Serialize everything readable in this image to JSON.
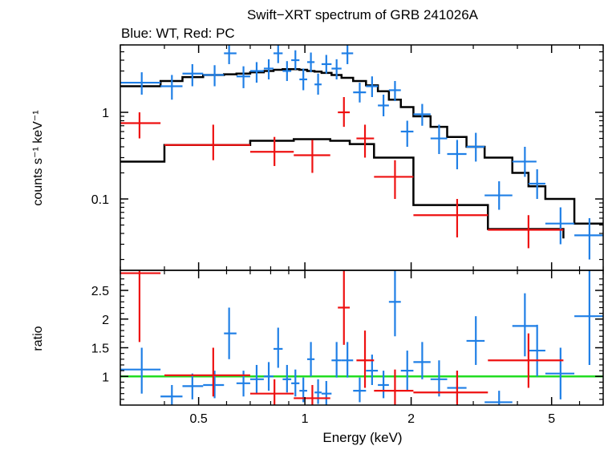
{
  "chart_data": [
    {
      "type": "scatter",
      "panel": "spectrum",
      "title": "Swift−XRT spectrum of GRB 241026A",
      "subtitle": "Blue: WT, Red: PC",
      "xlabel": "",
      "ylabel": "counts s⁻¹ keV⁻¹",
      "xscale": "log",
      "yscale": "log",
      "xlim": [
        0.3,
        7.0
      ],
      "ylim": [
        0.015,
        6.0
      ],
      "x_ticks": [
        0.5,
        1,
        2,
        5
      ],
      "y_ticks": [
        0.1,
        1
      ],
      "y_tick_labels": [
        "0.1",
        "1"
      ],
      "colors": {
        "wt": "#1f7fe6",
        "pc": "#ee1111",
        "model": "#000000"
      },
      "series": [
        {
          "name": "WT",
          "color": "#1f7fe6",
          "points": [
            {
              "x": 0.345,
              "xlo": 0.3,
              "xhi": 0.39,
              "y": 2.2,
              "ylo": 1.6,
              "yhi": 2.9
            },
            {
              "x": 0.42,
              "xlo": 0.39,
              "xhi": 0.45,
              "y": 2.0,
              "ylo": 1.4,
              "yhi": 2.7
            },
            {
              "x": 0.48,
              "xlo": 0.45,
              "xhi": 0.515,
              "y": 2.8,
              "ylo": 2.0,
              "yhi": 3.6
            },
            {
              "x": 0.555,
              "xlo": 0.515,
              "xhi": 0.59,
              "y": 2.7,
              "ylo": 2.0,
              "yhi": 3.5
            },
            {
              "x": 0.61,
              "xlo": 0.59,
              "xhi": 0.64,
              "y": 4.8,
              "ylo": 3.6,
              "yhi": 6.0
            },
            {
              "x": 0.67,
              "xlo": 0.64,
              "xhi": 0.7,
              "y": 2.6,
              "ylo": 1.9,
              "yhi": 3.4
            },
            {
              "x": 0.73,
              "xlo": 0.7,
              "xhi": 0.765,
              "y": 3.0,
              "ylo": 2.2,
              "yhi": 3.8
            },
            {
              "x": 0.79,
              "xlo": 0.765,
              "xhi": 0.815,
              "y": 3.2,
              "ylo": 2.4,
              "yhi": 4.1
            },
            {
              "x": 0.84,
              "xlo": 0.815,
              "xhi": 0.865,
              "y": 4.8,
              "ylo": 3.7,
              "yhi": 6.0
            },
            {
              "x": 0.89,
              "xlo": 0.865,
              "xhi": 0.915,
              "y": 3.0,
              "ylo": 2.3,
              "yhi": 3.9
            },
            {
              "x": 0.94,
              "xlo": 0.915,
              "xhi": 0.965,
              "y": 4.0,
              "ylo": 3.1,
              "yhi": 5.2
            },
            {
              "x": 0.99,
              "xlo": 0.965,
              "xhi": 1.015,
              "y": 2.4,
              "ylo": 1.8,
              "yhi": 3.2
            },
            {
              "x": 1.04,
              "xlo": 1.015,
              "xhi": 1.065,
              "y": 3.8,
              "ylo": 2.9,
              "yhi": 4.9
            },
            {
              "x": 1.09,
              "xlo": 1.065,
              "xhi": 1.115,
              "y": 2.1,
              "ylo": 1.6,
              "yhi": 2.8
            },
            {
              "x": 1.15,
              "xlo": 1.115,
              "xhi": 1.19,
              "y": 3.6,
              "ylo": 2.8,
              "yhi": 4.6
            },
            {
              "x": 1.23,
              "xlo": 1.19,
              "xhi": 1.27,
              "y": 3.2,
              "ylo": 2.4,
              "yhi": 4.1
            },
            {
              "x": 1.32,
              "xlo": 1.27,
              "xhi": 1.37,
              "y": 4.8,
              "ylo": 3.6,
              "yhi": 6.0
            },
            {
              "x": 1.43,
              "xlo": 1.37,
              "xhi": 1.49,
              "y": 1.7,
              "ylo": 1.3,
              "yhi": 2.2
            },
            {
              "x": 1.55,
              "xlo": 1.49,
              "xhi": 1.61,
              "y": 2.0,
              "ylo": 1.5,
              "yhi": 2.6
            },
            {
              "x": 1.67,
              "xlo": 1.61,
              "xhi": 1.73,
              "y": 1.2,
              "ylo": 0.9,
              "yhi": 1.6
            },
            {
              "x": 1.8,
              "xlo": 1.73,
              "xhi": 1.87,
              "y": 1.8,
              "ylo": 1.35,
              "yhi": 2.3
            },
            {
              "x": 1.95,
              "xlo": 1.87,
              "xhi": 2.03,
              "y": 0.6,
              "ylo": 0.4,
              "yhi": 0.8
            },
            {
              "x": 2.15,
              "xlo": 2.03,
              "xhi": 2.27,
              "y": 0.95,
              "ylo": 0.7,
              "yhi": 1.25
            },
            {
              "x": 2.4,
              "xlo": 2.27,
              "xhi": 2.53,
              "y": 0.5,
              "ylo": 0.33,
              "yhi": 0.72
            },
            {
              "x": 2.7,
              "xlo": 2.53,
              "xhi": 2.87,
              "y": 0.33,
              "ylo": 0.22,
              "yhi": 0.48
            },
            {
              "x": 3.05,
              "xlo": 2.87,
              "xhi": 3.23,
              "y": 0.4,
              "ylo": 0.27,
              "yhi": 0.58
            },
            {
              "x": 3.55,
              "xlo": 3.23,
              "xhi": 3.87,
              "y": 0.11,
              "ylo": 0.075,
              "yhi": 0.16
            },
            {
              "x": 4.2,
              "xlo": 3.87,
              "xhi": 4.53,
              "y": 0.27,
              "ylo": 0.18,
              "yhi": 0.4
            },
            {
              "x": 4.55,
              "xlo": 4.3,
              "xhi": 4.8,
              "y": 0.15,
              "ylo": 0.1,
              "yhi": 0.22
            },
            {
              "x": 5.3,
              "xlo": 4.8,
              "xhi": 5.8,
              "y": 0.052,
              "ylo": 0.03,
              "yhi": 0.08
            },
            {
              "x": 6.4,
              "xlo": 5.8,
              "xhi": 7.0,
              "y": 0.038,
              "ylo": 0.02,
              "yhi": 0.06
            }
          ]
        },
        {
          "name": "PC",
          "color": "#ee1111",
          "points": [
            {
              "x": 0.34,
              "xlo": 0.3,
              "xhi": 0.39,
              "y": 0.75,
              "ylo": 0.5,
              "yhi": 1.0
            },
            {
              "x": 0.55,
              "xlo": 0.4,
              "xhi": 0.7,
              "y": 0.42,
              "ylo": 0.28,
              "yhi": 0.72
            },
            {
              "x": 0.82,
              "xlo": 0.7,
              "xhi": 0.93,
              "y": 0.35,
              "ylo": 0.24,
              "yhi": 0.52
            },
            {
              "x": 1.05,
              "xlo": 0.93,
              "xhi": 1.18,
              "y": 0.32,
              "ylo": 0.2,
              "yhi": 0.48
            },
            {
              "x": 1.29,
              "xlo": 1.24,
              "xhi": 1.34,
              "y": 1.0,
              "ylo": 0.68,
              "yhi": 1.5
            },
            {
              "x": 1.48,
              "xlo": 1.4,
              "xhi": 1.57,
              "y": 0.5,
              "ylo": 0.3,
              "yhi": 0.72
            },
            {
              "x": 1.8,
              "xlo": 1.57,
              "xhi": 2.03,
              "y": 0.18,
              "ylo": 0.1,
              "yhi": 0.28
            },
            {
              "x": 2.7,
              "xlo": 2.03,
              "xhi": 3.3,
              "y": 0.065,
              "ylo": 0.036,
              "yhi": 0.1
            },
            {
              "x": 4.3,
              "xlo": 3.3,
              "xhi": 5.4,
              "y": 0.044,
              "ylo": 0.027,
              "yhi": 0.065
            }
          ]
        }
      ],
      "model_lines": [
        {
          "color": "#000000",
          "steps": [
            [
              0.3,
              2.0
            ],
            [
              0.39,
              2.3
            ],
            [
              0.45,
              2.55
            ],
            [
              0.515,
              2.7
            ],
            [
              0.59,
              2.75
            ],
            [
              0.64,
              2.8
            ],
            [
              0.7,
              2.9
            ],
            [
              0.765,
              3.0
            ],
            [
              0.815,
              3.1
            ],
            [
              0.865,
              3.15
            ],
            [
              0.915,
              3.15
            ],
            [
              0.965,
              3.1
            ],
            [
              1.015,
              3.0
            ],
            [
              1.065,
              2.95
            ],
            [
              1.115,
              2.85
            ],
            [
              1.19,
              2.7
            ],
            [
              1.27,
              2.5
            ],
            [
              1.37,
              2.3
            ],
            [
              1.49,
              2.05
            ],
            [
              1.61,
              1.75
            ],
            [
              1.73,
              1.4
            ],
            [
              1.87,
              1.15
            ],
            [
              2.03,
              0.9
            ],
            [
              2.27,
              0.68
            ],
            [
              2.53,
              0.52
            ],
            [
              2.87,
              0.4
            ],
            [
              3.23,
              0.3
            ],
            [
              3.87,
              0.2
            ],
            [
              4.3,
              0.14
            ],
            [
              4.8,
              0.1
            ],
            [
              5.8,
              0.052
            ],
            [
              7.0,
              0.052
            ]
          ]
        },
        {
          "color": "#000000",
          "steps": [
            [
              0.3,
              0.27
            ],
            [
              0.4,
              0.42
            ],
            [
              0.7,
              0.47
            ],
            [
              0.93,
              0.49
            ],
            [
              1.18,
              0.47
            ],
            [
              1.34,
              0.43
            ],
            [
              1.57,
              0.3
            ],
            [
              2.03,
              0.085
            ],
            [
              3.3,
              0.045
            ],
            [
              5.4,
              0.035
            ]
          ]
        }
      ]
    },
    {
      "type": "scatter",
      "panel": "ratio",
      "xlabel": "Energy (keV)",
      "ylabel": "ratio",
      "xscale": "log",
      "yscale": "linear",
      "xlim": [
        0.3,
        7.0
      ],
      "ylim": [
        0.5,
        2.85
      ],
      "x_ticks": [
        0.5,
        1,
        2,
        5
      ],
      "x_tick_labels": [
        "0.5",
        "1",
        "2",
        "5"
      ],
      "y_ticks": [
        1,
        1.5,
        2,
        2.5
      ],
      "y_tick_labels": [
        "1",
        "1.5",
        "2",
        "2.5"
      ],
      "reference_line": {
        "y": 1,
        "color": "#22dd22"
      },
      "series": [
        {
          "name": "WT",
          "color": "#1f7fe6",
          "points": [
            {
              "x": 0.345,
              "xlo": 0.3,
              "xhi": 0.39,
              "y": 1.12,
              "ylo": 0.7,
              "yhi": 1.5
            },
            {
              "x": 0.42,
              "xlo": 0.39,
              "xhi": 0.45,
              "y": 0.65,
              "ylo": 0.5,
              "yhi": 0.85
            },
            {
              "x": 0.48,
              "xlo": 0.45,
              "xhi": 0.515,
              "y": 0.83,
              "ylo": 0.6,
              "yhi": 1.05
            },
            {
              "x": 0.555,
              "xlo": 0.515,
              "xhi": 0.59,
              "y": 0.85,
              "ylo": 0.62,
              "yhi": 1.1
            },
            {
              "x": 0.61,
              "xlo": 0.59,
              "xhi": 0.64,
              "y": 1.75,
              "ylo": 1.3,
              "yhi": 2.2
            },
            {
              "x": 0.67,
              "xlo": 0.64,
              "xhi": 0.7,
              "y": 0.88,
              "ylo": 0.65,
              "yhi": 1.1
            },
            {
              "x": 0.73,
              "xlo": 0.7,
              "xhi": 0.765,
              "y": 0.95,
              "ylo": 0.7,
              "yhi": 1.2
            },
            {
              "x": 0.79,
              "xlo": 0.765,
              "xhi": 0.815,
              "y": 1.0,
              "ylo": 0.75,
              "yhi": 1.25
            },
            {
              "x": 0.84,
              "xlo": 0.815,
              "xhi": 0.865,
              "y": 1.48,
              "ylo": 1.15,
              "yhi": 1.85
            },
            {
              "x": 0.89,
              "xlo": 0.865,
              "xhi": 0.915,
              "y": 0.95,
              "ylo": 0.72,
              "yhi": 1.2
            },
            {
              "x": 0.94,
              "xlo": 0.915,
              "xhi": 0.965,
              "y": 0.88,
              "ylo": 0.65,
              "yhi": 1.12
            },
            {
              "x": 0.99,
              "xlo": 0.965,
              "xhi": 1.015,
              "y": 0.75,
              "ylo": 0.55,
              "yhi": 0.98
            },
            {
              "x": 1.04,
              "xlo": 1.015,
              "xhi": 1.065,
              "y": 1.3,
              "ylo": 1.0,
              "yhi": 1.6
            },
            {
              "x": 1.09,
              "xlo": 1.065,
              "xhi": 1.115,
              "y": 0.72,
              "ylo": 0.52,
              "yhi": 0.95
            },
            {
              "x": 1.15,
              "xlo": 1.115,
              "xhi": 1.19,
              "y": 0.7,
              "ylo": 0.5,
              "yhi": 0.92
            },
            {
              "x": 1.23,
              "xlo": 1.19,
              "xhi": 1.27,
              "y": 1.28,
              "ylo": 0.98,
              "yhi": 1.6
            },
            {
              "x": 1.32,
              "xlo": 1.27,
              "xhi": 1.37,
              "y": 1.28,
              "ylo": 0.98,
              "yhi": 1.6
            },
            {
              "x": 1.43,
              "xlo": 1.37,
              "xhi": 1.49,
              "y": 0.75,
              "ylo": 0.55,
              "yhi": 0.98
            },
            {
              "x": 1.55,
              "xlo": 1.49,
              "xhi": 1.61,
              "y": 1.1,
              "ylo": 0.85,
              "yhi": 1.38
            },
            {
              "x": 1.67,
              "xlo": 1.61,
              "xhi": 1.73,
              "y": 0.85,
              "ylo": 0.62,
              "yhi": 1.1
            },
            {
              "x": 1.8,
              "xlo": 1.73,
              "xhi": 1.87,
              "y": 2.3,
              "ylo": 1.7,
              "yhi": 2.85
            },
            {
              "x": 1.95,
              "xlo": 1.87,
              "xhi": 2.03,
              "y": 1.1,
              "ylo": 0.75,
              "yhi": 1.45
            },
            {
              "x": 2.15,
              "xlo": 2.03,
              "xhi": 2.27,
              "y": 1.25,
              "ylo": 0.95,
              "yhi": 1.6
            },
            {
              "x": 2.4,
              "xlo": 2.27,
              "xhi": 2.53,
              "y": 0.95,
              "ylo": 0.65,
              "yhi": 1.28
            },
            {
              "x": 2.7,
              "xlo": 2.53,
              "xhi": 2.87,
              "y": 0.8,
              "ylo": 0.55,
              "yhi": 1.1
            },
            {
              "x": 3.05,
              "xlo": 2.87,
              "xhi": 3.23,
              "y": 1.62,
              "ylo": 1.2,
              "yhi": 2.05
            },
            {
              "x": 3.55,
              "xlo": 3.23,
              "xhi": 3.87,
              "y": 0.55,
              "ylo": 0.5,
              "yhi": 0.75
            },
            {
              "x": 4.2,
              "xlo": 3.87,
              "xhi": 4.53,
              "y": 1.88,
              "ylo": 1.35,
              "yhi": 2.45
            },
            {
              "x": 4.55,
              "xlo": 4.3,
              "xhi": 4.8,
              "y": 1.45,
              "ylo": 1.0,
              "yhi": 1.9
            },
            {
              "x": 5.3,
              "xlo": 4.8,
              "xhi": 5.8,
              "y": 1.05,
              "ylo": 0.6,
              "yhi": 1.5
            },
            {
              "x": 6.4,
              "xlo": 5.8,
              "xhi": 7.0,
              "y": 2.05,
              "ylo": 1.2,
              "yhi": 2.85
            }
          ]
        },
        {
          "name": "PC",
          "color": "#ee1111",
          "points": [
            {
              "x": 0.34,
              "xlo": 0.3,
              "xhi": 0.39,
              "y": 2.8,
              "ylo": 1.6,
              "yhi": 2.85
            },
            {
              "x": 0.55,
              "xlo": 0.4,
              "xhi": 0.7,
              "y": 1.02,
              "ylo": 0.65,
              "yhi": 1.5
            },
            {
              "x": 0.82,
              "xlo": 0.7,
              "xhi": 0.93,
              "y": 0.7,
              "ylo": 0.5,
              "yhi": 0.95
            },
            {
              "x": 1.05,
              "xlo": 0.93,
              "xhi": 1.18,
              "y": 0.62,
              "ylo": 0.5,
              "yhi": 0.85
            },
            {
              "x": 1.29,
              "xlo": 1.24,
              "xhi": 1.34,
              "y": 2.2,
              "ylo": 1.55,
              "yhi": 2.85
            },
            {
              "x": 1.48,
              "xlo": 1.4,
              "xhi": 1.57,
              "y": 1.28,
              "ylo": 0.8,
              "yhi": 1.8
            },
            {
              "x": 1.8,
              "xlo": 1.57,
              "xhi": 2.03,
              "y": 0.75,
              "ylo": 0.5,
              "yhi": 1.12
            },
            {
              "x": 2.7,
              "xlo": 2.03,
              "xhi": 3.3,
              "y": 0.72,
              "ylo": 0.5,
              "yhi": 1.1
            },
            {
              "x": 4.3,
              "xlo": 3.3,
              "xhi": 5.4,
              "y": 1.28,
              "ylo": 0.8,
              "yhi": 1.75
            }
          ]
        }
      ]
    }
  ]
}
